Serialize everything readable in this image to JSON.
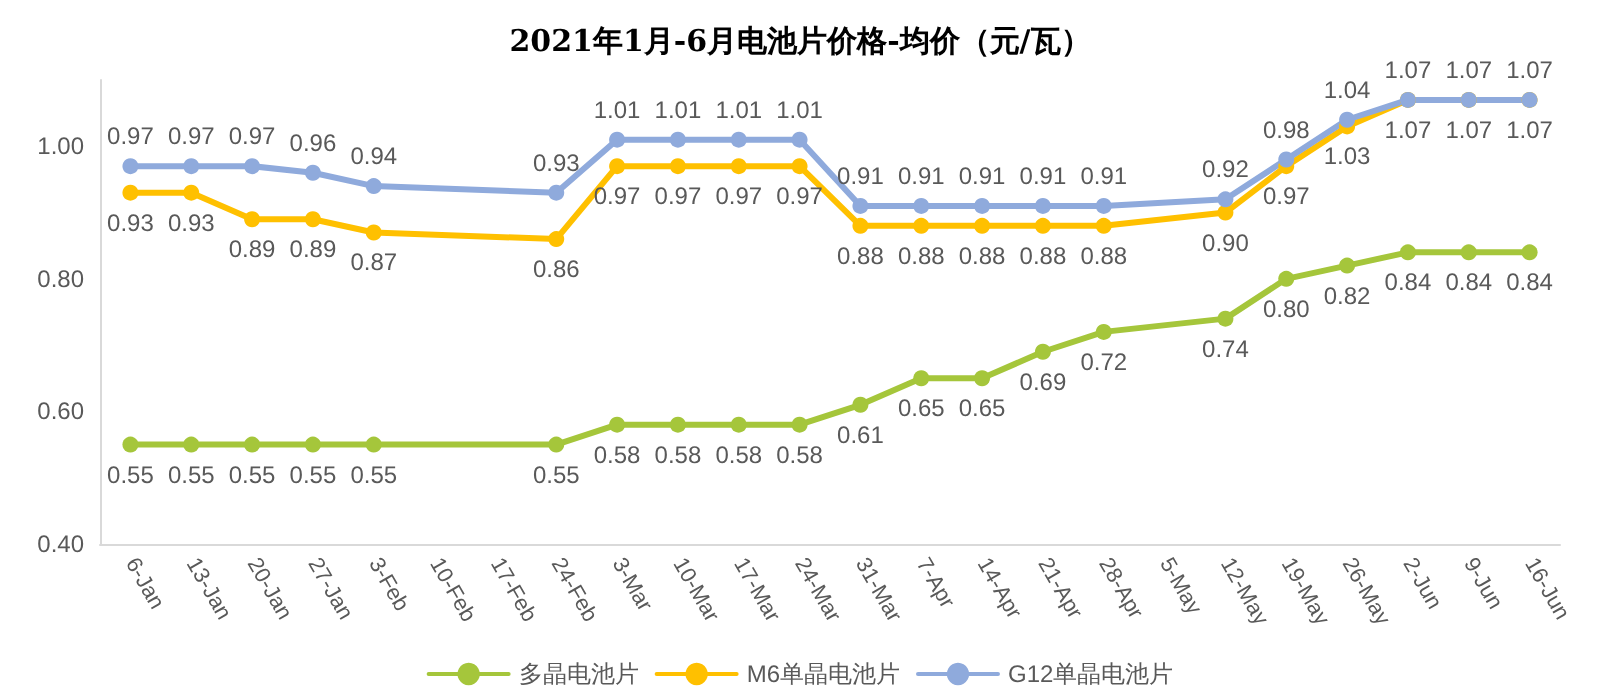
{
  "chart_data": {
    "type": "line",
    "title": "2021年1月-6月电池片价格-均价（元/瓦）",
    "categories": [
      "6-Jan",
      "13-Jan",
      "20-Jan",
      "27-Jan",
      "3-Feb",
      "10-Feb",
      "17-Feb",
      "24-Feb",
      "3-Mar",
      "10-Mar",
      "17-Mar",
      "24-Mar",
      "31-Mar",
      "7-Apr",
      "14-Apr",
      "21-Apr",
      "28-Apr",
      "5-May",
      "12-May",
      "19-May",
      "26-May",
      "2-Jun",
      "9-Jun",
      "16-Jun"
    ],
    "series": [
      {
        "name": "多晶电池片",
        "color": "#a5c63b",
        "values": [
          0.55,
          0.55,
          0.55,
          0.55,
          0.55,
          null,
          null,
          0.55,
          0.58,
          0.58,
          0.58,
          0.58,
          0.61,
          0.65,
          0.65,
          0.69,
          0.72,
          null,
          0.74,
          0.8,
          0.82,
          0.84,
          0.84,
          0.84
        ],
        "value_labels": [
          "0.55",
          "0.55",
          "0.55",
          "0.55",
          "0.55",
          null,
          null,
          "0.55",
          "0.58",
          "0.58",
          "0.58",
          "0.58",
          "0.61",
          "0.65",
          "0.65",
          "0.69",
          "0.72",
          null,
          "0.74",
          "0.80",
          "0.82",
          "0.84",
          "0.84",
          "0.84"
        ]
      },
      {
        "name": "M6单晶电池片",
        "color": "#ffc000",
        "values": [
          0.93,
          0.93,
          0.89,
          0.89,
          0.87,
          null,
          null,
          0.86,
          0.97,
          0.97,
          0.97,
          0.97,
          0.88,
          0.88,
          0.88,
          0.88,
          0.88,
          null,
          0.9,
          0.97,
          1.03,
          1.07,
          1.07,
          1.07
        ],
        "value_labels": [
          "0.93",
          "0.93",
          "0.89",
          "0.89",
          "0.87",
          null,
          null,
          "0.86",
          "0.97",
          "0.97",
          "0.97",
          "0.97",
          "0.88",
          "0.88",
          "0.88",
          "0.88",
          "0.88",
          null,
          "0.90",
          "0.97",
          "1.03",
          "1.07",
          "1.07",
          "1.07"
        ]
      },
      {
        "name": "G12单晶电池片",
        "color": "#8faadc",
        "values": [
          0.97,
          0.97,
          0.97,
          0.96,
          0.94,
          null,
          null,
          0.93,
          1.01,
          1.01,
          1.01,
          1.01,
          0.91,
          0.91,
          0.91,
          0.91,
          0.91,
          null,
          0.92,
          0.98,
          1.04,
          1.07,
          1.07,
          1.07
        ],
        "value_labels": [
          "0.97",
          "0.97",
          "0.97",
          "0.96",
          "0.94",
          null,
          null,
          "0.93",
          "1.01",
          "1.01",
          "1.01",
          "1.01",
          "0.91",
          "0.91",
          "0.91",
          "0.91",
          "0.91",
          null,
          "0.92",
          "0.98",
          "1.04",
          "1.07",
          "1.07",
          "1.07"
        ]
      }
    ],
    "ylim": [
      0.4,
      1.1
    ],
    "yticks": [
      {
        "value": 0.4,
        "label": "0.40"
      },
      {
        "value": 0.6,
        "label": "0.60"
      },
      {
        "value": 0.8,
        "label": "0.80"
      },
      {
        "value": 1.0,
        "label": "1.00"
      }
    ],
    "grid": false,
    "legend": "bottom",
    "marker": "circle",
    "line_style": "solid"
  }
}
